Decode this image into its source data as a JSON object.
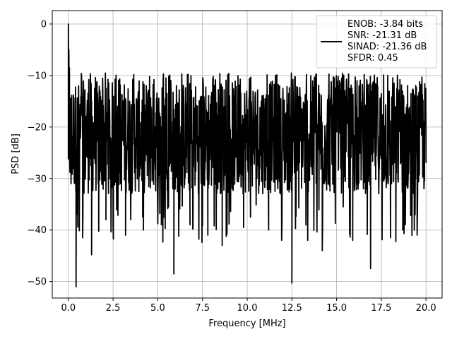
{
  "chart_data": {
    "type": "line",
    "xlabel": "Frequency [MHz]",
    "ylabel": "PSD [dB]",
    "xlim": [
      -0.9,
      20.9
    ],
    "ylim": [
      -53.2,
      2.6
    ],
    "xticks": [
      0.0,
      2.5,
      5.0,
      7.5,
      10.0,
      12.5,
      15.0,
      17.5,
      20.0
    ],
    "xtick_labels": [
      "0.0",
      "2.5",
      "5.0",
      "7.5",
      "10.0",
      "12.5",
      "15.0",
      "17.5",
      "20.0"
    ],
    "yticks": [
      0,
      -10,
      -20,
      -30,
      -40,
      -50
    ],
    "ytick_labels": [
      "0",
      "−10",
      "−20",
      "−30",
      "−40",
      "−50"
    ],
    "grid": true,
    "line_color": "#000000",
    "legend": {
      "placement": "top-right",
      "entries": [
        "ENOB: -3.84 bits",
        "SNR: -21.31 dB",
        "SINAD: -21.36 dB",
        "SFDR: 0.45"
      ]
    },
    "series": [
      {
        "noise_floor_range_db": [
          -33,
          -11
        ],
        "x": [
          0.0,
          0.03,
          0.06,
          0.1,
          0.15,
          0.2,
          0.43,
          0.5,
          0.8,
          1.3,
          2.1,
          2.5,
          3.2,
          4.2,
          5.2,
          5.9,
          6.8,
          7.8,
          8.6,
          9.8,
          11.2,
          12.5,
          14.2,
          15.9,
          16.9,
          18.7,
          19.5,
          20.0
        ],
        "y": [
          0.0,
          -5.0,
          -8.5,
          -16.0,
          -31.0,
          -28.0,
          -51.0,
          -37.0,
          -41.5,
          -44.8,
          -38.0,
          -39.5,
          -41.0,
          -40.0,
          -39.0,
          -48.5,
          -39.0,
          -41.0,
          -43.0,
          -39.5,
          -40.0,
          -50.3,
          -44.0,
          -42.0,
          -47.5,
          -40.0,
          -41.0,
          -27.0
        ]
      }
    ]
  }
}
